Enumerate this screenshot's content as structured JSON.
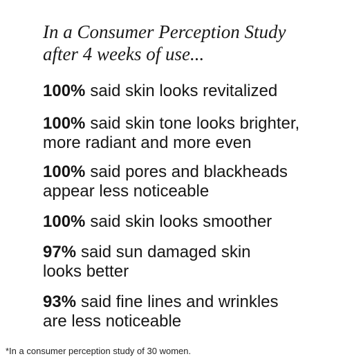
{
  "heading": {
    "lines": [
      "In a Consumer Perception Study",
      "after 4 weeks of use..."
    ]
  },
  "items": [
    {
      "percent": "100%",
      "lines": [
        "said skin looks revitalized"
      ]
    },
    {
      "percent": "100%",
      "lines": [
        "said skin tone looks brighter,",
        "more radiant and more even"
      ]
    },
    {
      "percent": "100%",
      "lines": [
        "said pores and blackheads",
        "appear less noticeable"
      ]
    },
    {
      "percent": "100%",
      "lines": [
        "said skin looks smoother"
      ]
    },
    {
      "percent": "97%",
      "lines": [
        "said sun damaged skin",
        "looks better"
      ]
    },
    {
      "percent": "93%",
      "lines": [
        "said fine lines and wrinkles",
        "are less noticeable"
      ]
    }
  ],
  "footnote": "*In a consumer perception study of 30 women."
}
